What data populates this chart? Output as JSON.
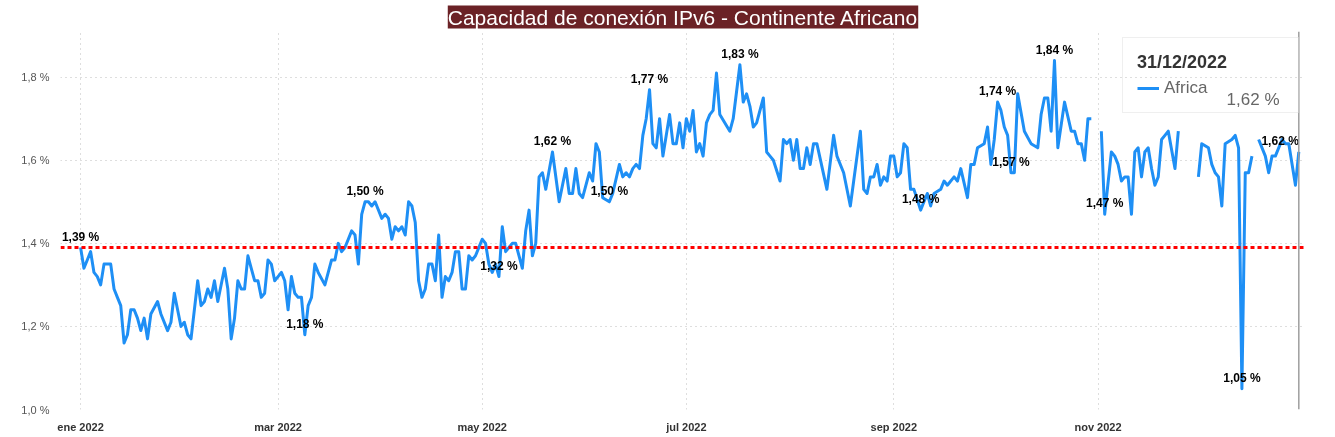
{
  "chart_data": {
    "type": "line",
    "title": "Capacidad de conexión IPv6 - Continente Africano",
    "x": [
      "2022-01-01",
      "2022-01-02",
      "2022-01-03",
      "2022-01-04",
      "2022-01-05",
      "2022-01-06",
      "2022-01-07",
      "2022-01-08",
      "2022-01-10",
      "2022-01-11",
      "2022-01-12",
      "2022-01-13",
      "2022-01-14",
      "2022-01-15",
      "2022-01-16",
      "2022-01-17",
      "2022-01-18",
      "2022-01-19",
      "2022-01-20",
      "2022-01-21",
      "2022-01-22",
      "2022-01-24",
      "2022-01-25",
      "2022-01-27",
      "2022-01-28",
      "2022-01-29",
      "2022-01-31",
      "2022-02-01",
      "2022-02-02",
      "2022-02-03",
      "2022-02-05",
      "2022-02-06",
      "2022-02-07",
      "2022-02-08",
      "2022-02-09",
      "2022-02-10",
      "2022-02-11",
      "2022-02-13",
      "2022-02-14",
      "2022-02-15",
      "2022-02-16",
      "2022-02-17",
      "2022-02-18",
      "2022-02-19",
      "2022-02-20",
      "2022-02-21",
      "2022-02-22",
      "2022-02-23",
      "2022-02-24",
      "2022-02-25",
      "2022-02-26",
      "2022-02-27",
      "2022-02-28",
      "2022-03-01",
      "2022-03-02",
      "2022-03-03",
      "2022-03-04",
      "2022-03-05",
      "2022-03-06",
      "2022-03-07",
      "2022-03-08",
      "2022-03-09",
      "2022-03-10",
      "2022-03-11",
      "2022-03-12",
      "2022-03-13",
      "2022-03-15",
      "2022-03-16",
      "2022-03-17",
      "2022-03-18",
      "2022-03-19",
      "2022-03-20",
      "2022-03-21",
      "2022-03-23",
      "2022-03-24",
      "2022-03-25",
      "2022-03-26",
      "2022-03-27",
      "2022-03-28",
      "2022-03-29",
      "2022-03-30",
      "2022-04-01",
      "2022-04-02",
      "2022-04-03",
      "2022-04-04",
      "2022-04-05",
      "2022-04-06",
      "2022-04-07",
      "2022-04-08",
      "2022-04-09",
      "2022-04-10",
      "2022-04-11",
      "2022-04-12",
      "2022-04-13",
      "2022-04-14",
      "2022-04-15",
      "2022-04-16",
      "2022-04-17",
      "2022-04-18",
      "2022-04-19",
      "2022-04-20",
      "2022-04-21",
      "2022-04-22",
      "2022-04-23",
      "2022-04-24",
      "2022-04-25",
      "2022-04-26",
      "2022-04-27",
      "2022-04-28",
      "2022-04-29",
      "2022-05-01",
      "2022-05-02",
      "2022-05-03",
      "2022-05-04",
      "2022-05-05",
      "2022-05-06",
      "2022-05-07",
      "2022-05-08",
      "2022-05-10",
      "2022-05-11",
      "2022-05-13",
      "2022-05-14",
      "2022-05-15",
      "2022-05-16",
      "2022-05-17",
      "2022-05-18",
      "2022-05-19",
      "2022-05-20",
      "2022-05-22",
      "2022-05-24",
      "2022-05-26",
      "2022-05-27",
      "2022-05-28",
      "2022-05-29",
      "2022-05-30",
      "2022-05-31",
      "2022-06-02",
      "2022-06-03",
      "2022-06-04",
      "2022-06-05",
      "2022-06-06",
      "2022-06-08",
      "2022-06-09",
      "2022-06-11",
      "2022-06-12",
      "2022-06-13",
      "2022-06-14",
      "2022-06-15",
      "2022-06-16",
      "2022-06-17",
      "2022-06-18",
      "2022-06-19",
      "2022-06-20",
      "2022-06-21",
      "2022-06-22",
      "2022-06-23",
      "2022-06-24",
      "2022-06-25",
      "2022-06-26",
      "2022-06-27",
      "2022-06-28",
      "2022-06-29",
      "2022-06-30",
      "2022-07-01",
      "2022-07-02",
      "2022-07-03",
      "2022-07-04",
      "2022-07-05",
      "2022-07-06",
      "2022-07-07",
      "2022-07-08",
      "2022-07-09",
      "2022-07-10",
      "2022-07-11",
      "2022-07-14",
      "2022-07-15",
      "2022-07-17",
      "2022-07-18",
      "2022-07-19",
      "2022-07-20",
      "2022-07-21",
      "2022-07-22",
      "2022-07-24",
      "2022-07-25",
      "2022-07-26",
      "2022-07-27",
      "2022-07-29",
      "2022-07-30",
      "2022-07-31",
      "2022-08-01",
      "2022-08-02",
      "2022-08-03",
      "2022-08-04",
      "2022-08-05",
      "2022-08-06",
      "2022-08-07",
      "2022-08-08",
      "2022-08-09",
      "2022-08-12",
      "2022-08-14",
      "2022-08-15",
      "2022-08-17",
      "2022-08-19",
      "2022-08-20",
      "2022-08-22",
      "2022-08-23",
      "2022-08-24",
      "2022-08-25",
      "2022-08-26",
      "2022-08-27",
      "2022-08-28",
      "2022-08-29",
      "2022-08-30",
      "2022-08-31",
      "2022-09-01",
      "2022-09-02",
      "2022-09-03",
      "2022-09-04",
      "2022-09-05",
      "2022-09-06",
      "2022-09-07",
      "2022-09-09",
      "2022-09-10",
      "2022-09-11",
      "2022-09-12",
      "2022-09-13",
      "2022-09-15",
      "2022-09-16",
      "2022-09-17",
      "2022-09-19",
      "2022-09-20",
      "2022-09-21",
      "2022-09-23",
      "2022-09-24",
      "2022-09-25",
      "2022-09-26",
      "2022-09-28",
      "2022-09-29",
      "2022-09-30",
      "2022-10-01",
      "2022-10-02",
      "2022-10-03",
      "2022-10-04",
      "2022-10-05",
      "2022-10-06",
      "2022-10-07",
      "2022-10-08",
      "2022-10-10",
      "2022-10-12",
      "2022-10-14",
      "2022-10-15",
      "2022-10-16",
      "2022-10-17",
      "2022-10-18",
      "2022-10-19",
      "2022-10-20",
      "2022-10-22",
      "2022-10-24",
      "2022-10-25",
      "2022-10-26",
      "2022-10-27",
      "2022-10-28",
      "2022-10-29",
      "2022-10-30",
      "2022-10-31",
      "2022-11-02",
      "2022-11-03",
      "2022-11-05",
      "2022-11-06",
      "2022-11-07",
      "2022-11-08",
      "2022-11-09",
      "2022-11-10",
      "2022-11-11",
      "2022-11-12",
      "2022-11-13",
      "2022-11-14",
      "2022-11-15",
      "2022-11-16",
      "2022-11-17",
      "2022-11-18",
      "2022-11-19",
      "2022-11-20",
      "2022-11-21",
      "2022-11-22",
      "2022-11-24",
      "2022-11-25",
      "2022-11-27",
      "2022-12-01",
      "2022-12-02",
      "2022-12-04",
      "2022-12-05",
      "2022-12-06",
      "2022-12-07",
      "2022-12-08",
      "2022-12-09",
      "2022-12-11",
      "2022-12-12",
      "2022-12-13",
      "2022-12-14",
      "2022-12-15",
      "2022-12-16",
      "2022-12-17",
      "2022-12-18",
      "2022-12-19",
      "2022-12-21",
      "2022-12-22",
      "2022-12-23",
      "2022-12-24",
      "2022-12-26",
      "2022-12-27",
      "2022-12-28",
      "2022-12-30",
      "2022-12-31"
    ],
    "series": [
      {
        "name": "Africa",
        "color": "#1e8ff5",
        "values": [
          1.39,
          1.34,
          1.36,
          1.38,
          1.33,
          1.32,
          1.3,
          1.35,
          1.35,
          1.29,
          1.27,
          1.25,
          1.16,
          1.18,
          1.24,
          1.24,
          1.22,
          1.19,
          1.22,
          1.17,
          1.23,
          1.26,
          1.23,
          1.19,
          1.21,
          1.28,
          1.2,
          1.21,
          1.18,
          1.17,
          1.31,
          1.25,
          1.26,
          1.29,
          1.27,
          1.31,
          1.26,
          1.34,
          1.29,
          1.17,
          1.22,
          1.31,
          1.29,
          1.29,
          1.37,
          1.34,
          1.31,
          1.31,
          1.27,
          1.28,
          1.36,
          1.35,
          1.31,
          1.32,
          1.33,
          1.31,
          1.24,
          1.32,
          1.28,
          1.27,
          1.27,
          1.18,
          1.25,
          1.27,
          1.35,
          1.33,
          1.3,
          1.33,
          1.36,
          1.36,
          1.4,
          1.38,
          1.39,
          1.43,
          1.42,
          1.35,
          1.47,
          1.5,
          1.5,
          1.49,
          1.5,
          1.46,
          1.47,
          1.46,
          1.41,
          1.44,
          1.43,
          1.44,
          1.42,
          1.5,
          1.49,
          1.45,
          1.31,
          1.27,
          1.29,
          1.35,
          1.35,
          1.31,
          1.42,
          1.27,
          1.32,
          1.31,
          1.33,
          1.38,
          1.38,
          1.29,
          1.29,
          1.37,
          1.36,
          1.37,
          1.41,
          1.4,
          1.35,
          1.33,
          1.35,
          1.32,
          1.44,
          1.38,
          1.4,
          1.4,
          1.34,
          1.43,
          1.48,
          1.37,
          1.4,
          1.56,
          1.57,
          1.53,
          1.62,
          1.5,
          1.58,
          1.52,
          1.52,
          1.58,
          1.52,
          1.51,
          1.57,
          1.55,
          1.64,
          1.62,
          1.51,
          1.5,
          1.52,
          1.59,
          1.56,
          1.57,
          1.56,
          1.58,
          1.59,
          1.58,
          1.66,
          1.7,
          1.77,
          1.64,
          1.63,
          1.7,
          1.61,
          1.66,
          1.71,
          1.64,
          1.64,
          1.69,
          1.63,
          1.7,
          1.67,
          1.72,
          1.62,
          1.64,
          1.61,
          1.69,
          1.71,
          1.72,
          1.81,
          1.71,
          1.67,
          1.7,
          1.83,
          1.74,
          1.76,
          1.73,
          1.68,
          1.69,
          1.75,
          1.62,
          1.61,
          1.6,
          1.55,
          1.65,
          1.64,
          1.65,
          1.6,
          1.65,
          1.58,
          1.58,
          1.63,
          1.59,
          1.64,
          1.64,
          1.53,
          1.66,
          1.61,
          1.57,
          1.49,
          1.55,
          1.67,
          1.53,
          1.52,
          1.56,
          1.56,
          1.59,
          1.54,
          1.56,
          1.55,
          1.61,
          1.61,
          1.56,
          1.57,
          1.64,
          1.63,
          1.53,
          1.53,
          1.48,
          1.5,
          1.52,
          1.49,
          1.52,
          1.53,
          1.55,
          1.54,
          1.56,
          1.55,
          1.58,
          1.51,
          1.59,
          1.59,
          1.63,
          1.64,
          1.68,
          1.59,
          1.65,
          1.74,
          1.72,
          1.68,
          1.66,
          1.57,
          1.57,
          1.76,
          1.67,
          1.64,
          1.63,
          1.71,
          1.75,
          1.75,
          1.67,
          1.84,
          1.63,
          1.74,
          1.67,
          1.67,
          1.64,
          1.64,
          1.6,
          1.7,
          1.7,
          null,
          1.67,
          1.47,
          1.62,
          1.61,
          1.59,
          1.55,
          1.56,
          1.56,
          1.47,
          1.62,
          1.63,
          1.56,
          1.62,
          1.63,
          1.58,
          1.54,
          1.56,
          1.65,
          1.66,
          1.67,
          1.58,
          1.67,
          null,
          1.56,
          1.64,
          1.63,
          1.59,
          1.57,
          1.56,
          1.49,
          1.64,
          1.65,
          1.66,
          1.63,
          1.05,
          1.57,
          1.57,
          1.61,
          null,
          1.65,
          1.61,
          1.57,
          1.61,
          1.61,
          1.65,
          1.64,
          1.64,
          1.54,
          1.62
        ]
      }
    ],
    "xlim": [
      "2021-12-26",
      "2023-01-02"
    ],
    "xticks": [
      {
        "value": "2022-01-01",
        "label": "ene 2022"
      },
      {
        "value": "2022-03-01",
        "label": "mar 2022"
      },
      {
        "value": "2022-05-01",
        "label": "may 2022"
      },
      {
        "value": "2022-07-01",
        "label": "jul 2022"
      },
      {
        "value": "2022-09-01",
        "label": "sep 2022"
      },
      {
        "value": "2022-11-01",
        "label": "nov 2022"
      }
    ],
    "ylim": [
      1.0,
      1.91
    ],
    "yticks": [
      {
        "value": 1.0,
        "label": "1,0 %"
      },
      {
        "value": 1.2,
        "label": "1,2 %"
      },
      {
        "value": 1.4,
        "label": "1,4 %"
      },
      {
        "value": 1.6,
        "label": "1,6 %"
      },
      {
        "value": 1.8,
        "label": "1,8 %"
      }
    ],
    "grid": true,
    "legend": "top right",
    "legend_title": "31/12/2022",
    "line_style": "solid",
    "ref_lines": [
      {
        "axis": "y",
        "value": 1.39,
        "color": "#ff0000",
        "line_style": "dashed"
      },
      {
        "axis": "x",
        "value": "2022-12-31",
        "color": "#9e9e9e",
        "line_style": "solid"
      }
    ],
    "annotations": [
      {
        "text": "1,39 %",
        "x": "2022-01-01",
        "y": 1.39
      },
      {
        "text": "1,18 %",
        "x": "2022-03-09",
        "y": 1.18
      },
      {
        "text": "1,50 %",
        "x": "2022-03-27",
        "y": 1.5
      },
      {
        "text": "1,32 %",
        "x": "2022-05-06",
        "y": 1.32
      },
      {
        "text": "1,62 %",
        "x": "2022-05-22",
        "y": 1.62
      },
      {
        "text": "1,50 %",
        "x": "2022-06-08",
        "y": 1.5
      },
      {
        "text": "1,77 %",
        "x": "2022-06-20",
        "y": 1.77
      },
      {
        "text": "1,83 %",
        "x": "2022-07-17",
        "y": 1.83
      },
      {
        "text": "1,48 %",
        "x": "2022-09-09",
        "y": 1.48
      },
      {
        "text": "1,74 %",
        "x": "2022-10-02",
        "y": 1.74
      },
      {
        "text": "1,57 %",
        "x": "2022-10-06",
        "y": 1.57
      },
      {
        "text": "1,84 %",
        "x": "2022-10-19",
        "y": 1.84
      },
      {
        "text": "1,47 %",
        "x": "2022-11-03",
        "y": 1.47
      },
      {
        "text": "1,05 %",
        "x": "2022-12-14",
        "y": 1.05
      },
      {
        "text": "1,62 %",
        "x": "2022-12-31",
        "y": 1.62
      },
      "1,62 %"
    ]
  }
}
